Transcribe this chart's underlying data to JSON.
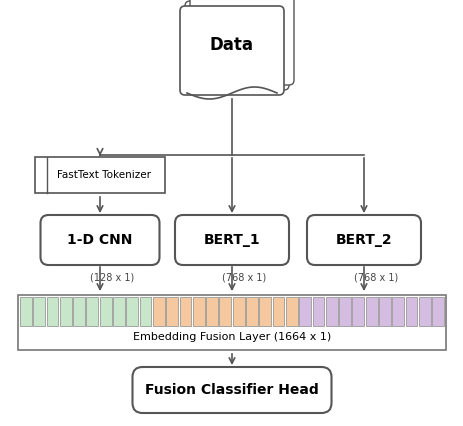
{
  "bg_color": "#ffffff",
  "data_label": "Data",
  "fasttext_label": "FastText Tokenizer",
  "cnn_label_box": "1-D CNN",
  "bert1_label_box": "BERT_1",
  "bert2_label_box": "BERT_2",
  "fusion_label": "Embedding Fusion Layer (1664 x 1)",
  "classifier_label": "Fusion Classifier Head",
  "cnn_dim_label": "(128 x 1)",
  "bert1_dim_label": "(768 x 1)",
  "bert2_dim_label": "(768 x 1)",
  "green_color": "#c8e6c9",
  "orange_color": "#f5c8a0",
  "purple_color": "#d4bde0",
  "edge_color": "#555555",
  "n_green": 10,
  "n_orange": 11,
  "n_purple": 11
}
